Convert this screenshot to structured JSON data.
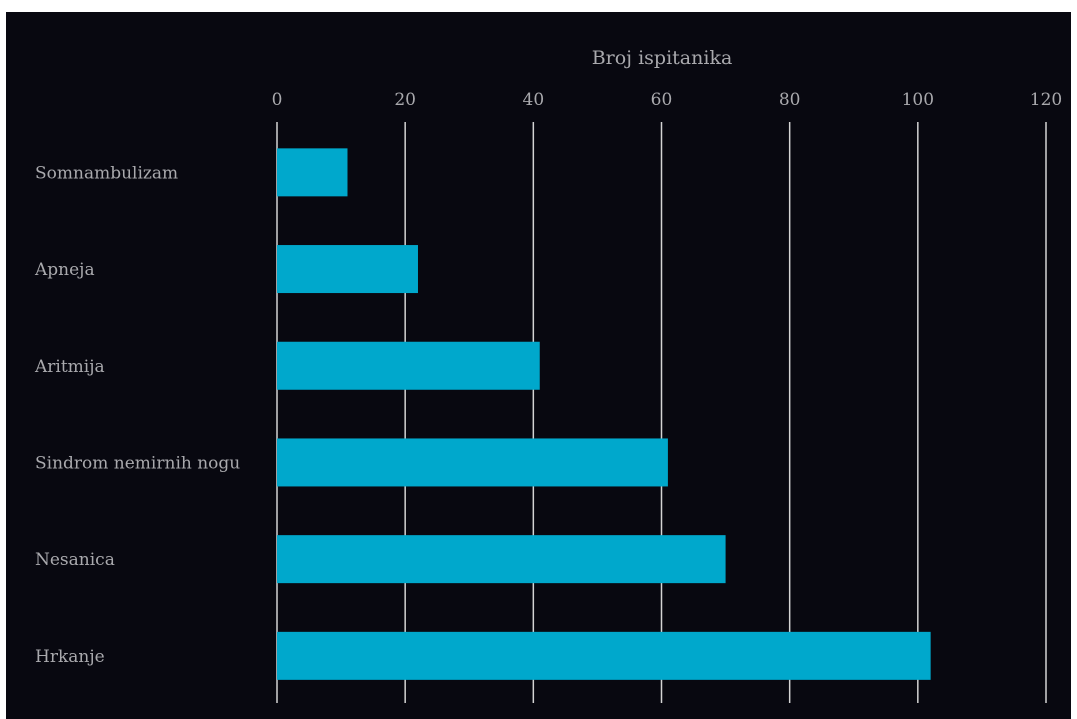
{
  "colors": {
    "background": "#080810",
    "bar": "#00a8cc",
    "grid": "#d4d4d4",
    "text": "#a9a9ad"
  },
  "chart_data": {
    "type": "bar",
    "orientation": "horizontal",
    "xlabel": "Broj ispitanika",
    "xaxis_position": "top",
    "xlim": [
      0,
      120
    ],
    "xticks": [
      0,
      20,
      40,
      60,
      80,
      100,
      120
    ],
    "grid": true,
    "categories": [
      "Somnambulizam",
      "Apneja",
      "Aritmija",
      "Sindrom nemirnih nogu",
      "Nesanica",
      "Hrkanje"
    ],
    "values": [
      11,
      22,
      41,
      61,
      70,
      102
    ]
  }
}
